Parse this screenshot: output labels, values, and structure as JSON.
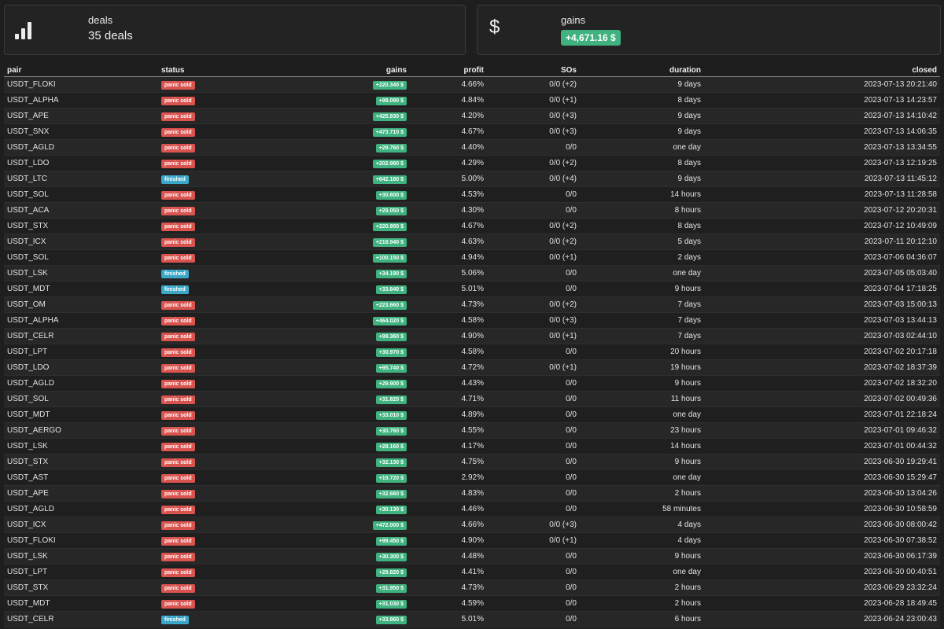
{
  "summary": {
    "deals_label": "deals",
    "deals_value": "35 deals",
    "gains_label": "gains",
    "gains_value": "+4,671.16 $",
    "icons": [
      "bar-chart-icon",
      "dollar-icon"
    ]
  },
  "colors": {
    "panic_sold": "#d9534f",
    "finished": "#3ba7c9",
    "gain": "#3fb27f"
  },
  "table": {
    "headers": [
      "pair",
      "status",
      "gains",
      "profit",
      "SOs",
      "duration",
      "closed"
    ],
    "rows": [
      [
        "USDT_FLOKI",
        "panic sold",
        "+220.340 $",
        "4.66%",
        "0/0 (+2)",
        "9 days",
        "2023-07-13 20:21:40"
      ],
      [
        "USDT_ALPHA",
        "panic sold",
        "+98.090 $",
        "4.84%",
        "0/0 (+1)",
        "8 days",
        "2023-07-13 14:23:57"
      ],
      [
        "USDT_APE",
        "panic sold",
        "+425.930 $",
        "4.20%",
        "0/0 (+3)",
        "9 days",
        "2023-07-13 14:10:42"
      ],
      [
        "USDT_SNX",
        "panic sold",
        "+473.710 $",
        "4.67%",
        "0/0 (+3)",
        "9 days",
        "2023-07-13 14:06:35"
      ],
      [
        "USDT_AGLD",
        "panic sold",
        "+29.760 $",
        "4.40%",
        "0/0",
        "one day",
        "2023-07-13 13:34:55"
      ],
      [
        "USDT_LDO",
        "panic sold",
        "+202.980 $",
        "4.29%",
        "0/0 (+2)",
        "8 days",
        "2023-07-13 12:19:25"
      ],
      [
        "USDT_LTC",
        "finished",
        "+642.180 $",
        "5.00%",
        "0/0 (+4)",
        "9 days",
        "2023-07-13 11:45:12"
      ],
      [
        "USDT_SOL",
        "panic sold",
        "+30.600 $",
        "4.53%",
        "0/0",
        "14 hours",
        "2023-07-13 11:28:58"
      ],
      [
        "USDT_ACA",
        "panic sold",
        "+29.050 $",
        "4.30%",
        "0/0",
        "8 hours",
        "2023-07-12 20:20:31"
      ],
      [
        "USDT_STX",
        "panic sold",
        "+220.950 $",
        "4.67%",
        "0/0 (+2)",
        "8 days",
        "2023-07-12 10:49:09"
      ],
      [
        "USDT_ICX",
        "panic sold",
        "+218.940 $",
        "4.63%",
        "0/0 (+2)",
        "5 days",
        "2023-07-11 20:12:10"
      ],
      [
        "USDT_SOL",
        "panic sold",
        "+100.150 $",
        "4.94%",
        "0/0 (+1)",
        "2 days",
        "2023-07-06 04:36:07"
      ],
      [
        "USDT_LSK",
        "finished",
        "+34.190 $",
        "5.06%",
        "0/0",
        "one day",
        "2023-07-05 05:03:40"
      ],
      [
        "USDT_MDT",
        "finished",
        "+33.840 $",
        "5.01%",
        "0/0",
        "9 hours",
        "2023-07-04 17:18:25"
      ],
      [
        "USDT_OM",
        "panic sold",
        "+223.660 $",
        "4.73%",
        "0/0 (+2)",
        "7 days",
        "2023-07-03 15:00:13"
      ],
      [
        "USDT_ALPHA",
        "panic sold",
        "+464.020 $",
        "4.58%",
        "0/0 (+3)",
        "7 days",
        "2023-07-03 13:44:13"
      ],
      [
        "USDT_CELR",
        "panic sold",
        "+99.360 $",
        "4.90%",
        "0/0 (+1)",
        "7 days",
        "2023-07-03 02:44:10"
      ],
      [
        "USDT_LPT",
        "panic sold",
        "+30.970 $",
        "4.58%",
        "0/0",
        "20 hours",
        "2023-07-02 20:17:18"
      ],
      [
        "USDT_LDO",
        "panic sold",
        "+95.740 $",
        "4.72%",
        "0/0 (+1)",
        "19 hours",
        "2023-07-02 18:37:39"
      ],
      [
        "USDT_AGLD",
        "panic sold",
        "+29.900 $",
        "4.43%",
        "0/0",
        "9 hours",
        "2023-07-02 18:32:20"
      ],
      [
        "USDT_SOL",
        "panic sold",
        "+31.820 $",
        "4.71%",
        "0/0",
        "11 hours",
        "2023-07-02 00:49:36"
      ],
      [
        "USDT_MDT",
        "panic sold",
        "+33.010 $",
        "4.89%",
        "0/0",
        "one day",
        "2023-07-01 22:18:24"
      ],
      [
        "USDT_AERGO",
        "panic sold",
        "+30.760 $",
        "4.55%",
        "0/0",
        "23 hours",
        "2023-07-01 09:46:32"
      ],
      [
        "USDT_LSK",
        "panic sold",
        "+28.160 $",
        "4.17%",
        "0/0",
        "14 hours",
        "2023-07-01 00:44:32"
      ],
      [
        "USDT_STX",
        "panic sold",
        "+32.130 $",
        "4.75%",
        "0/0",
        "9 hours",
        "2023-06-30 19:29:41"
      ],
      [
        "USDT_AST",
        "panic sold",
        "+19.720 $",
        "2.92%",
        "0/0",
        "one day",
        "2023-06-30 15:29:47"
      ],
      [
        "USDT_APE",
        "panic sold",
        "+32.660 $",
        "4.83%",
        "0/0",
        "2 hours",
        "2023-06-30 13:04:26"
      ],
      [
        "USDT_AGLD",
        "panic sold",
        "+30.130 $",
        "4.46%",
        "0/0",
        "58 minutes",
        "2023-06-30 10:58:59"
      ],
      [
        "USDT_ICX",
        "panic sold",
        "+472.000 $",
        "4.66%",
        "0/0 (+3)",
        "4 days",
        "2023-06-30 08:00:42"
      ],
      [
        "USDT_FLOKI",
        "panic sold",
        "+99.450 $",
        "4.90%",
        "0/0 (+1)",
        "4 days",
        "2023-06-30 07:38:52"
      ],
      [
        "USDT_LSK",
        "panic sold",
        "+30.300 $",
        "4.48%",
        "0/0",
        "9 hours",
        "2023-06-30 06:17:39"
      ],
      [
        "USDT_LPT",
        "panic sold",
        "+29.820 $",
        "4.41%",
        "0/0",
        "one day",
        "2023-06-30 00:40:51"
      ],
      [
        "USDT_STX",
        "panic sold",
        "+31.950 $",
        "4.73%",
        "0/0",
        "2 hours",
        "2023-06-29 23:32:24"
      ],
      [
        "USDT_MDT",
        "panic sold",
        "+31.030 $",
        "4.59%",
        "0/0",
        "2 hours",
        "2023-06-28 18:49:45"
      ],
      [
        "USDT_CELR",
        "finished",
        "+33.860 $",
        "5.01%",
        "0/0",
        "6 hours",
        "2023-06-24 23:00:43"
      ]
    ]
  }
}
